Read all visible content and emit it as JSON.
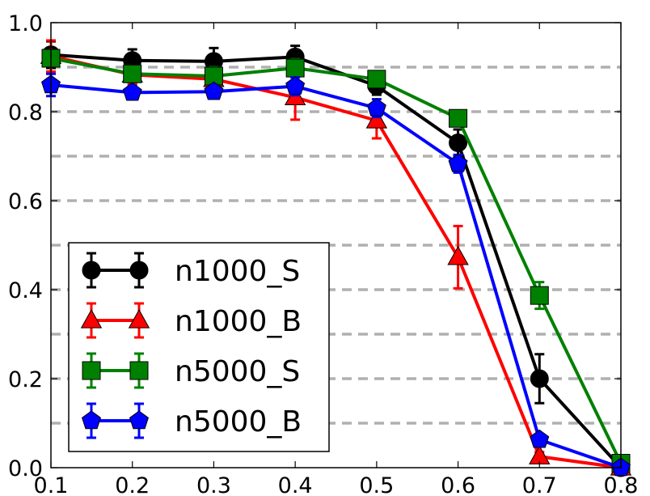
{
  "chart_data": {
    "type": "line",
    "title": "",
    "xlabel": "",
    "ylabel": "",
    "xlim": [
      0.1,
      0.8
    ],
    "ylim": [
      0.0,
      1.0
    ],
    "xticks": [
      "0.1",
      "0.2",
      "0.3",
      "0.4",
      "0.5",
      "0.6",
      "0.7",
      "0.8"
    ],
    "yticks": [
      "0.0",
      "0.2",
      "0.4",
      "0.6",
      "0.8",
      "1.0"
    ],
    "grid": "horizontal dashed at 0.1 steps",
    "legend_position": "bottom-left",
    "x": [
      0.1,
      0.2,
      0.3,
      0.4,
      0.5,
      0.6,
      0.7,
      0.8
    ],
    "series": [
      {
        "name": "n1000_S",
        "color": "#000000",
        "marker": "circle",
        "values": [
          0.928,
          0.915,
          0.913,
          0.923,
          0.858,
          0.73,
          0.2,
          0.0
        ],
        "errors": [
          0.03,
          0.025,
          0.03,
          0.025,
          0.02,
          0.03,
          0.055,
          0.0
        ]
      },
      {
        "name": "n1000_B",
        "color": "#ff0000",
        "marker": "triangle",
        "values": [
          0.925,
          0.883,
          0.873,
          0.832,
          0.78,
          0.473,
          0.025,
          0.0
        ],
        "errors": [
          0.035,
          0.02,
          0.015,
          0.05,
          0.04,
          0.07,
          0.01,
          0.0
        ]
      },
      {
        "name": "n5000_S",
        "color": "#008000",
        "marker": "square",
        "values": [
          0.92,
          0.885,
          0.88,
          0.898,
          0.873,
          0.785,
          0.387,
          0.01
        ],
        "errors": [
          0.015,
          0.015,
          0.02,
          0.02,
          0.015,
          0.015,
          0.03,
          0.01
        ]
      },
      {
        "name": "n5000_B",
        "color": "#0000ff",
        "marker": "pentagon",
        "values": [
          0.86,
          0.843,
          0.845,
          0.857,
          0.808,
          0.683,
          0.063,
          0.0
        ],
        "errors": [
          0.025,
          0.015,
          0.015,
          0.02,
          0.02,
          0.02,
          0.01,
          0.0
        ]
      }
    ]
  }
}
